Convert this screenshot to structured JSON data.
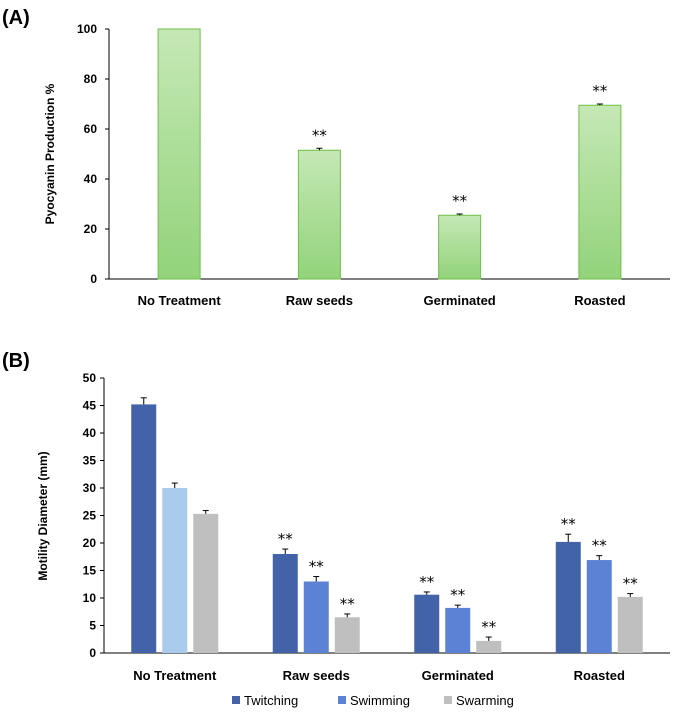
{
  "chart_data": [
    {
      "type": "bar",
      "panel_label": "(A)",
      "categories": [
        "No Treatment",
        "Raw seeds",
        "Germinated",
        "Roasted"
      ],
      "values": [
        100,
        51.5,
        25.5,
        69.5
      ],
      "errors": [
        0,
        0.8,
        0.5,
        0.5
      ],
      "annotations": [
        "",
        "**",
        "**",
        "**"
      ],
      "ylabel": "Pyocyanin Production %",
      "ylim": [
        0,
        100
      ],
      "yticks": [
        0,
        20,
        40,
        60,
        80,
        100
      ],
      "bar_color_top": "#c5e8b5",
      "bar_color_bottom": "#92d37a",
      "bar_edge_color": "#6fbf4a",
      "grid": false
    },
    {
      "type": "bar",
      "panel_label": "(B)",
      "categories": [
        "No Treatment",
        "Raw seeds",
        "Germinated",
        "Roasted"
      ],
      "ylabel": "Motility Diameter (mm)",
      "ylim": [
        0,
        50
      ],
      "yticks": [
        0,
        5,
        10,
        15,
        20,
        25,
        30,
        35,
        40,
        45,
        50
      ],
      "legend_position": "bottom",
      "grid": false,
      "series": [
        {
          "name": "Twitching",
          "values": [
            45.2,
            18.0,
            10.6,
            20.2
          ],
          "errors": [
            1.2,
            0.9,
            0.5,
            1.4
          ],
          "annotations": [
            "",
            "**",
            "**",
            "**"
          ],
          "color": "#4263a8"
        },
        {
          "name": "Swimming",
          "values": [
            30.0,
            13.0,
            8.2,
            16.9
          ],
          "errors": [
            0.9,
            0.9,
            0.5,
            0.8
          ],
          "annotations": [
            "",
            "**",
            "**",
            "**"
          ],
          "color": "#5b82d4",
          "color_first": "#a9cbec"
        },
        {
          "name": "Swarming",
          "values": [
            25.3,
            6.5,
            2.2,
            10.2
          ],
          "errors": [
            0.6,
            0.6,
            0.7,
            0.6
          ],
          "annotations": [
            "",
            "**",
            "**",
            "**"
          ],
          "color": "#bfbfbf"
        }
      ]
    }
  ]
}
